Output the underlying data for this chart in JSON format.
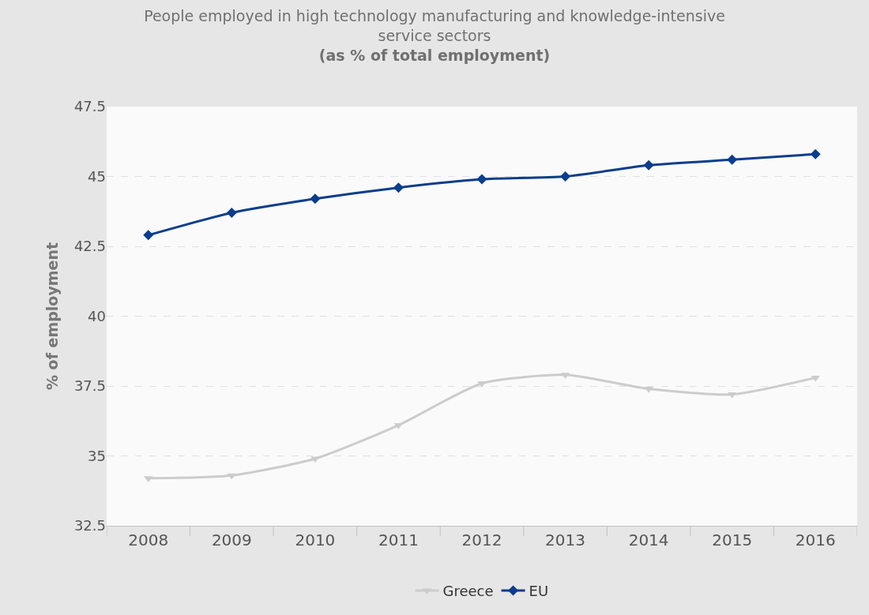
{
  "chart_data": {
    "type": "line",
    "title": "People employed in high technology manufacturing and knowledge-intensive service sectors",
    "subtitle": "(as % of total employment)",
    "ylabel": "% of employment",
    "categories": [
      "2008",
      "2009",
      "2010",
      "2011",
      "2012",
      "2013",
      "2014",
      "2015",
      "2016"
    ],
    "series": [
      {
        "name": "Greece",
        "color": "#cccccc",
        "marker": "triangle",
        "values": [
          34.2,
          34.3,
          34.9,
          36.1,
          37.6,
          37.9,
          37.4,
          37.2,
          37.8
        ]
      },
      {
        "name": "EU",
        "color": "#0b3d8c",
        "marker": "diamond",
        "values": [
          42.9,
          43.7,
          44.2,
          44.6,
          44.9,
          45.0,
          45.4,
          45.6,
          45.8
        ]
      }
    ],
    "ylim": [
      32.5,
      47.5
    ],
    "yticks": [
      {
        "value": 32.5,
        "label": "32.5"
      },
      35,
      {
        "value": 37.5,
        "label": "37.5"
      },
      40,
      {
        "value": 42.5,
        "label": "42.5"
      },
      45,
      {
        "value": 47.5,
        "label": "47.5"
      }
    ],
    "grid": "y",
    "legend": "bottom",
    "line_style": "solid"
  }
}
